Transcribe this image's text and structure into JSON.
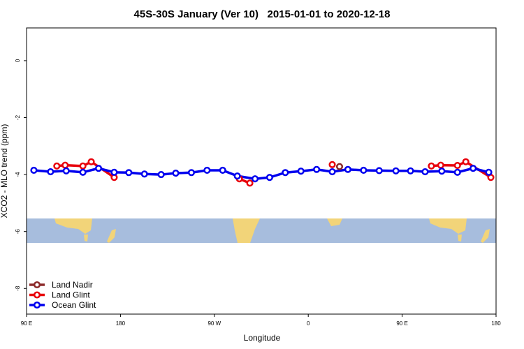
{
  "chart_data": {
    "type": "line",
    "title": "45S-30S January (Ver 10)   2015-01-01 to 2020-12-18",
    "xlabel": "Longitude",
    "ylabel": "XCO2 - MLO trend (ppm)",
    "xlim": [
      90,
      540
    ],
    "xticks": [
      {
        "value": 90,
        "label": "90 E"
      },
      {
        "value": 180,
        "label": "180"
      },
      {
        "value": 270,
        "label": "90 W"
      },
      {
        "value": 360,
        "label": "0"
      },
      {
        "value": 450,
        "label": "90 E"
      },
      {
        "value": 540,
        "label": "180"
      }
    ],
    "ylim": [
      -8.9,
      1.15
    ],
    "yticks": [
      0,
      -2,
      -4,
      -6,
      -8
    ],
    "legend": "bottom-left",
    "series": [
      {
        "name": "Land Nadir",
        "color": "#8b2a2a",
        "x": [
          390
        ],
        "values": [
          -3.72
        ]
      },
      {
        "name": "Land Glint",
        "color": "#e8000b",
        "x": [
          119,
          127,
          144,
          152,
          174,
          null,
          294,
          304,
          null,
          383,
          null,
          478,
          487,
          503,
          511,
          535
        ],
        "values": [
          -3.7,
          -3.67,
          -3.7,
          -3.55,
          -4.1,
          null,
          -4.15,
          -4.3,
          null,
          -3.65,
          null,
          -3.7,
          -3.67,
          -3.68,
          -3.55,
          -4.1
        ]
      },
      {
        "name": "Ocean Glint",
        "color": "#0000ee",
        "x": [
          97,
          113,
          128,
          144,
          159,
          174,
          188,
          203,
          219,
          233,
          248,
          263,
          278,
          292,
          309,
          323,
          338,
          353,
          368,
          383,
          398,
          413,
          428,
          444,
          458,
          472,
          488,
          503,
          518,
          533
        ],
        "values": [
          -3.85,
          -3.9,
          -3.87,
          -3.92,
          -3.78,
          -3.92,
          -3.93,
          -3.98,
          -4.0,
          -3.95,
          -3.93,
          -3.85,
          -3.85,
          -4.05,
          -4.15,
          -4.1,
          -3.93,
          -3.88,
          -3.82,
          -3.9,
          -3.82,
          -3.85,
          -3.86,
          -3.87,
          -3.87,
          -3.9,
          -3.88,
          -3.92,
          -3.78,
          -3.92
        ]
      }
    ]
  }
}
